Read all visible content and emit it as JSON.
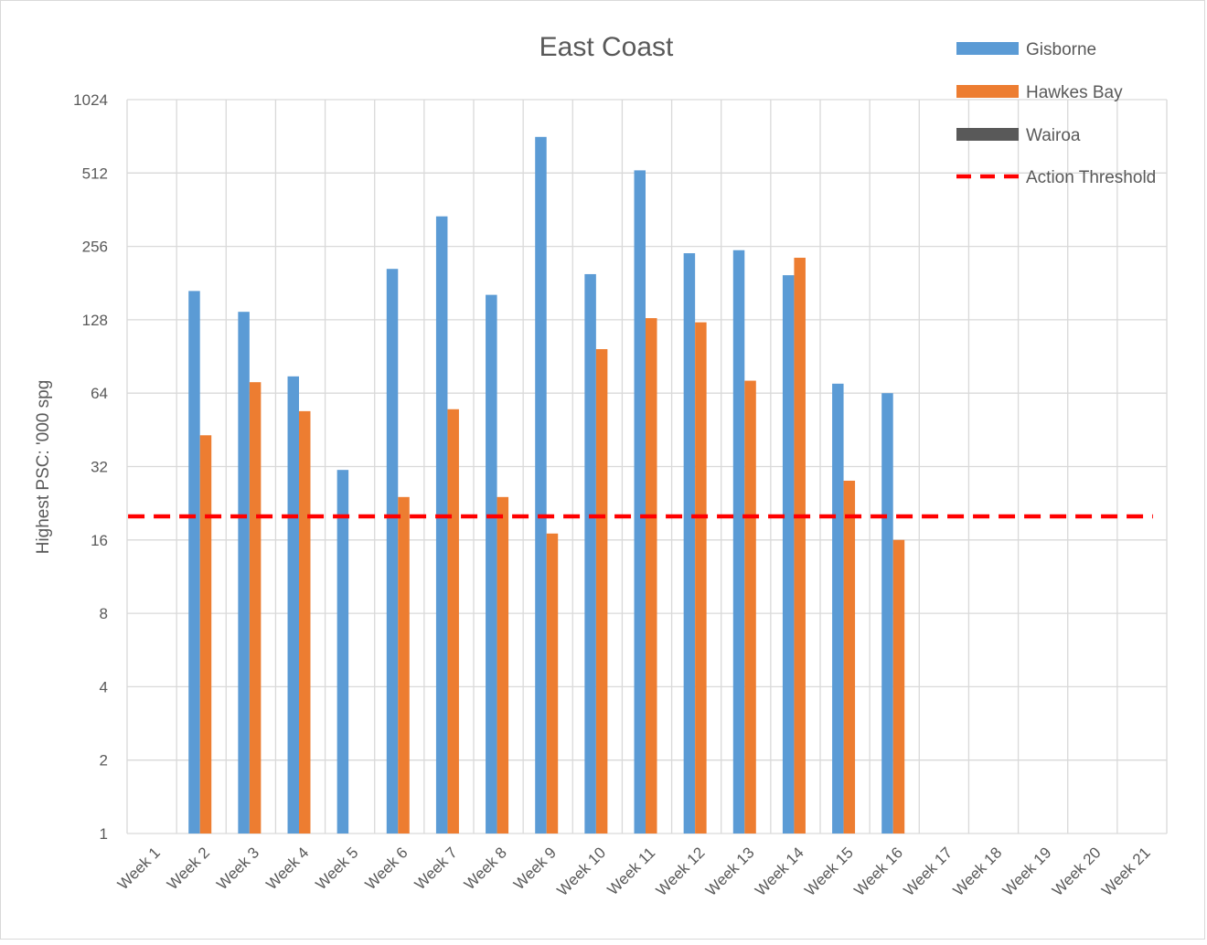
{
  "chart_data": {
    "type": "bar",
    "title": "East Coast",
    "xlabel": "",
    "ylabel": "Highest PSC: '000 spg",
    "yscale": "log2",
    "ylim": [
      1,
      1024
    ],
    "yticks": [
      1,
      2,
      4,
      8,
      16,
      32,
      64,
      128,
      256,
      512,
      1024
    ],
    "grid": true,
    "legend_position": "top-right",
    "categories": [
      "Week 1",
      "Week 2",
      "Week 3",
      "Week 4",
      "Week 5",
      "Week 6",
      "Week 7",
      "Week 8",
      "Week 9",
      "Week 10",
      "Week 11",
      "Week 12",
      "Week 13",
      "Week 14",
      "Week 15",
      "Week 16",
      "Week 17",
      "Week 18",
      "Week 19",
      "Week 20",
      "Week 21"
    ],
    "series": [
      {
        "name": "Gisborne",
        "color": "#5b9bd5",
        "values": [
          null,
          168,
          138,
          75,
          31,
          207,
          340,
          162,
          720,
          197,
          525,
          240,
          247,
          195,
          70,
          64,
          null,
          null,
          null,
          null,
          null
        ]
      },
      {
        "name": "Hawkes Bay",
        "color": "#ed7d31",
        "values": [
          null,
          43,
          71,
          54,
          null,
          24,
          55,
          24,
          17,
          97,
          130,
          125,
          72,
          230,
          28,
          16,
          null,
          null,
          null,
          null,
          null
        ]
      },
      {
        "name": "Wairoa",
        "color": "#595959",
        "values": [
          null,
          null,
          null,
          null,
          null,
          null,
          null,
          null,
          null,
          null,
          null,
          null,
          null,
          null,
          null,
          null,
          null,
          null,
          null,
          null,
          null
        ]
      }
    ],
    "threshold": {
      "name": "Action Threshold",
      "value": 20,
      "color": "#ff0000",
      "style": "dashed"
    }
  }
}
